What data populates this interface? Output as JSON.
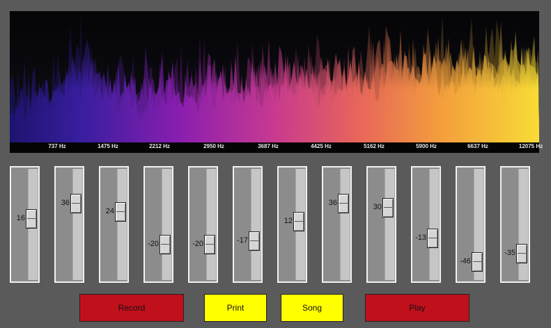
{
  "spectrum": {
    "freq_labels": [
      "737 Hz",
      "1475 Hz",
      "2212 Hz",
      "2950 Hz",
      "3687 Hz",
      "4425 Hz",
      "5162 Hz",
      "5900 Hz",
      "6637 Hz",
      "12075 Hz"
    ],
    "gradient_colors": [
      "#2a1a8a",
      "#5a1fa8",
      "#a21fb0",
      "#d93d86",
      "#f0724c",
      "#f6a83a",
      "#f8d838"
    ]
  },
  "sliders": [
    {
      "value": 16,
      "level": 0.56
    },
    {
      "value": 36,
      "level": 0.73
    },
    {
      "value": 24,
      "level": 0.64
    },
    {
      "value": -20,
      "level": 0.28
    },
    {
      "value": -20,
      "level": 0.28
    },
    {
      "value": -17,
      "level": 0.32
    },
    {
      "value": 12,
      "level": 0.53
    },
    {
      "value": 36,
      "level": 0.73
    },
    {
      "value": 30,
      "level": 0.68
    },
    {
      "value": -13,
      "level": 0.35
    },
    {
      "value": -46,
      "level": 0.09
    },
    {
      "value": -35,
      "level": 0.18
    }
  ],
  "buttons": {
    "record": "Record",
    "print": "Print",
    "song": "Song",
    "play": "Play"
  },
  "colors": {
    "red_button": "#c0101c",
    "yellow_button": "#ffff00",
    "background": "#5a5a5a"
  }
}
